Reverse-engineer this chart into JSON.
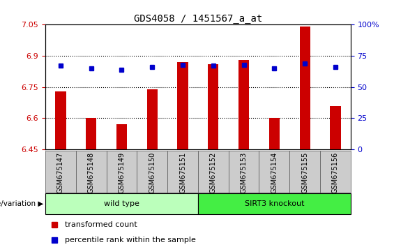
{
  "title": "GDS4058 / 1451567_a_at",
  "samples": [
    "GSM675147",
    "GSM675148",
    "GSM675149",
    "GSM675150",
    "GSM675151",
    "GSM675152",
    "GSM675153",
    "GSM675154",
    "GSM675155",
    "GSM675156"
  ],
  "bar_values": [
    6.73,
    6.6,
    6.57,
    6.74,
    6.87,
    6.86,
    6.88,
    6.6,
    7.04,
    6.66
  ],
  "dot_values": [
    67,
    65,
    64,
    66,
    68,
    67,
    68,
    65,
    69,
    66
  ],
  "ylim": [
    6.45,
    7.05
  ],
  "yticks": [
    6.45,
    6.6,
    6.75,
    6.9,
    7.05
  ],
  "ytick_labels": [
    "6.45",
    "6.6",
    "6.75",
    "6.9",
    "7.05"
  ],
  "y2lim": [
    0,
    100
  ],
  "y2ticks": [
    0,
    25,
    50,
    75,
    100
  ],
  "y2tick_labels": [
    "0",
    "25",
    "50",
    "75",
    "100%"
  ],
  "bar_color": "#cc0000",
  "dot_color": "#0000cc",
  "groups": [
    {
      "label": "wild type",
      "indices": [
        0,
        1,
        2,
        3,
        4
      ],
      "color": "#bbffbb"
    },
    {
      "label": "SIRT3 knockout",
      "indices": [
        5,
        6,
        7,
        8,
        9
      ],
      "color": "#44ee44"
    }
  ],
  "group_label": "genotype/variation ▶",
  "legend_bar_label": "transformed count",
  "legend_dot_label": "percentile rank within the sample",
  "tick_label_color_left": "#cc0000",
  "tick_label_color_right": "#0000cc",
  "sample_area_bg": "#cccccc",
  "bar_base": 6.45,
  "bar_width": 0.35
}
